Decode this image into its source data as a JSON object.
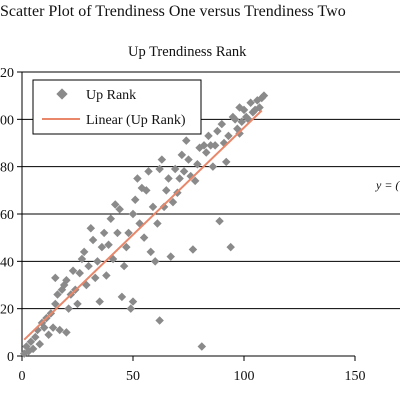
{
  "page_title": "Scatter Plot of Trendiness One versus Trendiness Two",
  "chart_data": {
    "type": "scatter",
    "title": "Up Trendiness Rank",
    "xlabel": "",
    "ylabel": "",
    "xlim": [
      0,
      150
    ],
    "ylim": [
      0,
      120
    ],
    "xticks": [
      "0",
      "50",
      "100",
      "150"
    ],
    "yticks": [
      "0",
      "20",
      "40",
      "60",
      "80",
      "100",
      "120"
    ],
    "grid": "horizontal",
    "legend": {
      "placement": "top-left",
      "entries": [
        {
          "label": "Up Rank",
          "marker": "diamond",
          "color": "#8a8a8a"
        },
        {
          "label": "Linear (Up Rank)",
          "marker": "line",
          "color": "#e8876a"
        }
      ]
    },
    "equation_label": "y = (",
    "colors": {
      "points": "#8a8a8a",
      "trend": "#e8876a",
      "grid": "#000000"
    },
    "series": [
      {
        "name": "Up Rank",
        "points": [
          [
            1,
            1
          ],
          [
            2,
            4
          ],
          [
            3,
            2
          ],
          [
            4,
            6
          ],
          [
            5,
            3
          ],
          [
            6,
            8
          ],
          [
            7,
            11
          ],
          [
            8,
            5
          ],
          [
            9,
            14
          ],
          [
            10,
            12
          ],
          [
            11,
            16
          ],
          [
            12,
            9
          ],
          [
            13,
            18
          ],
          [
            14,
            12
          ],
          [
            15,
            22
          ],
          [
            15,
            33
          ],
          [
            16,
            26
          ],
          [
            17,
            11
          ],
          [
            18,
            28
          ],
          [
            19,
            30
          ],
          [
            20,
            32
          ],
          [
            20,
            10
          ],
          [
            21,
            20
          ],
          [
            22,
            26
          ],
          [
            23,
            36
          ],
          [
            24,
            28
          ],
          [
            25,
            22
          ],
          [
            26,
            35
          ],
          [
            27,
            41
          ],
          [
            28,
            44
          ],
          [
            29,
            30
          ],
          [
            30,
            38
          ],
          [
            31,
            54
          ],
          [
            32,
            49
          ],
          [
            33,
            33
          ],
          [
            34,
            40
          ],
          [
            35,
            23
          ],
          [
            36,
            46
          ],
          [
            37,
            52
          ],
          [
            38,
            34
          ],
          [
            39,
            47
          ],
          [
            40,
            58
          ],
          [
            41,
            41
          ],
          [
            42,
            64
          ],
          [
            43,
            52
          ],
          [
            44,
            62
          ],
          [
            45,
            25
          ],
          [
            46,
            38
          ],
          [
            47,
            46
          ],
          [
            48,
            52
          ],
          [
            49,
            20
          ],
          [
            50,
            60
          ],
          [
            50,
            23
          ],
          [
            51,
            66
          ],
          [
            52,
            75
          ],
          [
            53,
            56
          ],
          [
            54,
            71
          ],
          [
            55,
            50
          ],
          [
            56,
            70
          ],
          [
            57,
            78
          ],
          [
            58,
            44
          ],
          [
            59,
            63
          ],
          [
            60,
            40
          ],
          [
            61,
            56
          ],
          [
            62,
            15
          ],
          [
            62,
            79
          ],
          [
            63,
            83
          ],
          [
            64,
            63
          ],
          [
            65,
            70
          ],
          [
            66,
            75
          ],
          [
            67,
            42
          ],
          [
            68,
            65
          ],
          [
            69,
            79
          ],
          [
            70,
            69
          ],
          [
            71,
            75
          ],
          [
            72,
            85
          ],
          [
            73,
            78
          ],
          [
            74,
            91
          ],
          [
            75,
            83
          ],
          [
            76,
            76
          ],
          [
            77,
            45
          ],
          [
            78,
            74
          ],
          [
            79,
            81
          ],
          [
            80,
            88
          ],
          [
            81,
            4
          ],
          [
            82,
            89
          ],
          [
            83,
            86
          ],
          [
            84,
            93
          ],
          [
            85,
            89
          ],
          [
            86,
            80
          ],
          [
            87,
            89
          ],
          [
            88,
            95
          ],
          [
            89,
            57
          ],
          [
            90,
            98
          ],
          [
            91,
            90
          ],
          [
            92,
            82
          ],
          [
            93,
            93
          ],
          [
            94,
            46
          ],
          [
            95,
            101
          ],
          [
            96,
            100
          ],
          [
            97,
            96
          ],
          [
            98,
            94
          ],
          [
            99,
            99
          ],
          [
            100,
            104
          ],
          [
            101,
            101
          ],
          [
            102,
            100
          ],
          [
            103,
            107
          ],
          [
            104,
            103
          ],
          [
            105,
            104
          ],
          [
            106,
            108
          ],
          [
            107,
            105
          ],
          [
            108,
            109
          ],
          [
            109,
            110
          ],
          [
            98,
            105
          ]
        ]
      }
    ],
    "trendline": {
      "name": "Linear (Up Rank)",
      "slope": 0.905,
      "intercept": 6,
      "x_range": [
        1,
        108
      ]
    }
  }
}
